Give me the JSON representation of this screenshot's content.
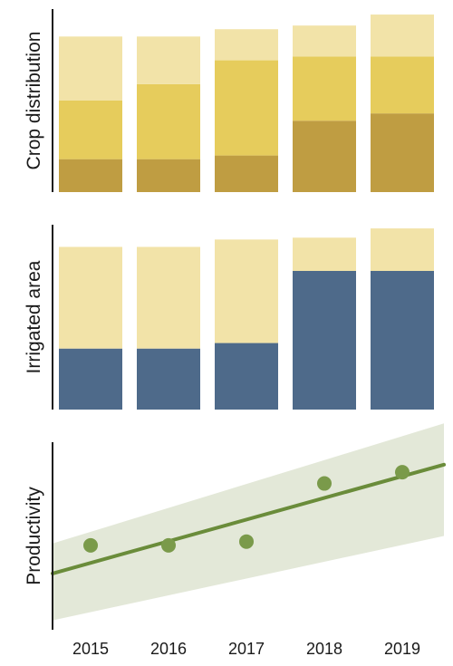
{
  "chart_data": [
    {
      "type": "bar",
      "stacked": true,
      "ylabel": "Crop distribution",
      "categories": [
        "2015",
        "2016",
        "2017",
        "2018",
        "2019"
      ],
      "ylim": [
        0,
        1.0
      ],
      "grid": false,
      "series": [
        {
          "color": "#bf9d42",
          "values": [
            0.18,
            0.18,
            0.2,
            0.39,
            0.43
          ]
        },
        {
          "color": "#e6cc5c",
          "values": [
            0.32,
            0.41,
            0.52,
            0.35,
            0.31
          ]
        },
        {
          "color": "#f2e3a8",
          "values": [
            0.35,
            0.26,
            0.17,
            0.17,
            0.23
          ]
        }
      ]
    },
    {
      "type": "bar",
      "stacked": true,
      "ylabel": "Irrigated area",
      "categories": [
        "2015",
        "2016",
        "2017",
        "2018",
        "2019"
      ],
      "ylim": [
        0,
        1.0
      ],
      "grid": false,
      "series": [
        {
          "color": "#4e6a8a",
          "values": [
            0.33,
            0.33,
            0.36,
            0.75,
            0.75
          ]
        },
        {
          "color": "#f2e3a8",
          "values": [
            0.55,
            0.55,
            0.56,
            0.18,
            0.23
          ]
        }
      ]
    },
    {
      "type": "scatter",
      "ylabel": "Productivity",
      "x": [
        "2015",
        "2016",
        "2017",
        "2018",
        "2019"
      ],
      "y": [
        0.45,
        0.45,
        0.47,
        0.78,
        0.84
      ],
      "regression": {
        "start": 0.3,
        "end": 0.88,
        "ci_lower_start": 0.05,
        "ci_upper_start": 0.46,
        "ci_lower_end": 0.5,
        "ci_upper_end": 1.1
      },
      "ylim": [
        0,
        1.0
      ],
      "grid": false,
      "colors": {
        "points": "#7a9a4a",
        "line": "#6a8c3a",
        "band": "#e3e8d8"
      }
    }
  ]
}
